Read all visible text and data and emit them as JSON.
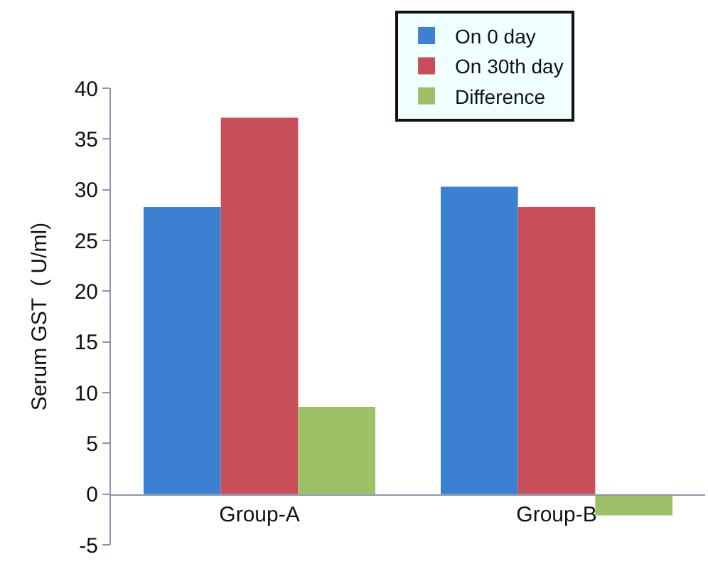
{
  "chart_data": {
    "type": "bar",
    "ylabel": "Serum GST  ( U/ml)",
    "categories": [
      "Group-A",
      "Group-B"
    ],
    "series": [
      {
        "name": "On 0 day",
        "color": "#3c80d2",
        "values": [
          28.3,
          30.3
        ]
      },
      {
        "name": "On 30th day",
        "color": "#c84e59",
        "values": [
          37.1,
          28.3
        ]
      },
      {
        "name": "Difference",
        "color": "#9bc065",
        "values": [
          8.6,
          -2.1
        ]
      }
    ],
    "ylim": [
      -5,
      40
    ],
    "yticks": [
      -5,
      0,
      5,
      10,
      15,
      20,
      25,
      30,
      35,
      40
    ],
    "legend": "top right"
  }
}
